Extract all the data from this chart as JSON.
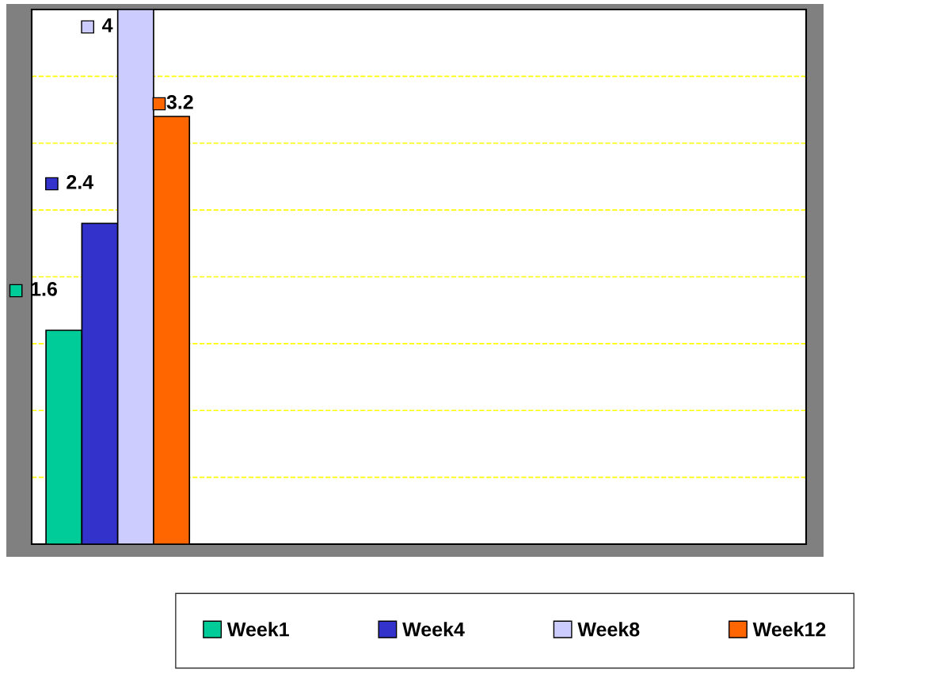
{
  "chart_data": {
    "type": "bar",
    "categories": [
      null
    ],
    "series": [
      {
        "name": "Week1",
        "color": "#00cc99",
        "values": [
          1.6
        ]
      },
      {
        "name": "Week4",
        "color": "#3333cc",
        "values": [
          2.4
        ]
      },
      {
        "name": "Week8",
        "color": "#ccccff",
        "values": [
          4
        ]
      },
      {
        "name": "Week12",
        "color": "#ff6600",
        "values": [
          3.2
        ]
      }
    ],
    "ylim": [
      0,
      4
    ],
    "yticks": [
      {
        "value": 0,
        "label": null
      },
      {
        "value": 0.5,
        "label": null
      },
      {
        "value": 1,
        "label": null
      },
      {
        "value": 1.5,
        "label": null
      },
      {
        "value": 2,
        "label": null
      },
      {
        "value": 2.5,
        "label": null
      },
      {
        "value": 3,
        "label": null
      },
      {
        "value": 3.5,
        "label": null
      },
      {
        "value": 4,
        "label": null
      }
    ],
    "grid": "y",
    "legend": "bottom",
    "data_labels": true
  }
}
